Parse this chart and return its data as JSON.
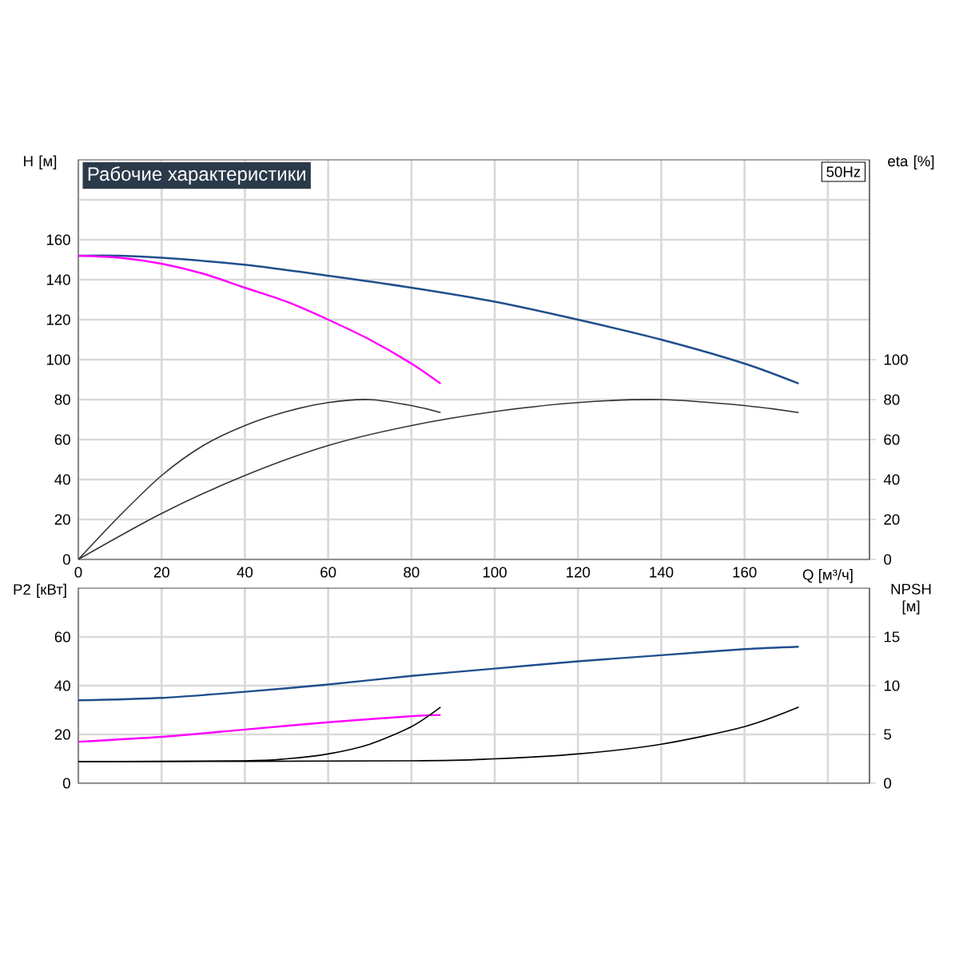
{
  "chart_data": [
    {
      "type": "line",
      "title": "Рабочие характеристики",
      "xlabel": "Q [м³/ч]",
      "ylabel": "H [м]",
      "y2label": "eta [%]",
      "annotations": [
        "50Hz"
      ],
      "grid": true,
      "xlim": [
        0,
        190
      ],
      "xticks": [
        0,
        20,
        40,
        60,
        80,
        100,
        120,
        140,
        160,
        {
          "value": 180,
          "label": null
        }
      ],
      "ylim": [
        0,
        200
      ],
      "yticks": [
        0,
        20,
        40,
        60,
        80,
        100,
        120,
        140,
        160,
        {
          "value": 180,
          "label": null
        }
      ],
      "y2lim": [
        0,
        200
      ],
      "y2ticks": [
        0,
        20,
        40,
        60,
        80,
        100
      ],
      "series": [
        {
          "color": "#1f4e8c",
          "x": [
            0,
            10,
            20,
            40,
            60,
            80,
            100,
            120,
            140,
            160,
            173
          ],
          "values": [
            152,
            152,
            151,
            147.5,
            142,
            136,
            129,
            120,
            110,
            98,
            88
          ]
        },
        {
          "color": "#ff00ff",
          "x": [
            0,
            10,
            20,
            30,
            40,
            50,
            60,
            70,
            80,
            87
          ],
          "values": [
            152,
            151,
            148,
            143,
            136,
            129,
            120,
            110,
            98,
            88
          ]
        },
        {
          "color": "#333333",
          "axis": "y2",
          "x": [
            0,
            10,
            20,
            30,
            40,
            50,
            60,
            70,
            80,
            87
          ],
          "values": [
            0,
            22,
            42,
            57,
            67,
            74,
            78.5,
            80,
            77,
            73.5
          ]
        },
        {
          "color": "#333333",
          "axis": "y2",
          "x": [
            0,
            20,
            40,
            60,
            80,
            100,
            120,
            140,
            160,
            173
          ],
          "values": [
            0,
            23,
            42,
            57,
            67,
            74,
            78.5,
            80,
            77,
            73.5
          ]
        }
      ]
    },
    {
      "type": "line",
      "ylabel": "P2 [кВт]",
      "y2label": "NPSH [м]",
      "grid": true,
      "tick_labels": "y",
      "xlim": [
        0,
        190
      ],
      "xticks": [
        0,
        20,
        40,
        60,
        80,
        100,
        120,
        140,
        160,
        180
      ],
      "ylim": [
        0,
        80
      ],
      "yticks": [
        0,
        20,
        40,
        60
      ],
      "y2lim": [
        0,
        20
      ],
      "y2ticks": [
        0,
        5,
        10,
        15
      ],
      "series": [
        {
          "color": "#1f4e8c",
          "x": [
            0,
            20,
            40,
            60,
            80,
            100,
            120,
            140,
            160,
            173
          ],
          "values": [
            34,
            35,
            37.5,
            40.5,
            44,
            47,
            50,
            52.5,
            55,
            56
          ]
        },
        {
          "color": "#ff00ff",
          "x": [
            0,
            20,
            40,
            60,
            80,
            87
          ],
          "values": [
            17,
            19,
            22,
            25,
            27.5,
            28
          ]
        },
        {
          "color": "#000000",
          "axis": "y2",
          "x": [
            0,
            40,
            50,
            60,
            70,
            80,
            87
          ],
          "values": [
            2.2,
            2.3,
            2.5,
            3,
            4,
            5.8,
            7.8
          ]
        },
        {
          "color": "#000000",
          "axis": "y2",
          "x": [
            0,
            80,
            100,
            120,
            140,
            160,
            173
          ],
          "values": [
            2.2,
            2.3,
            2.5,
            3,
            4,
            5.8,
            7.8
          ]
        }
      ]
    }
  ]
}
